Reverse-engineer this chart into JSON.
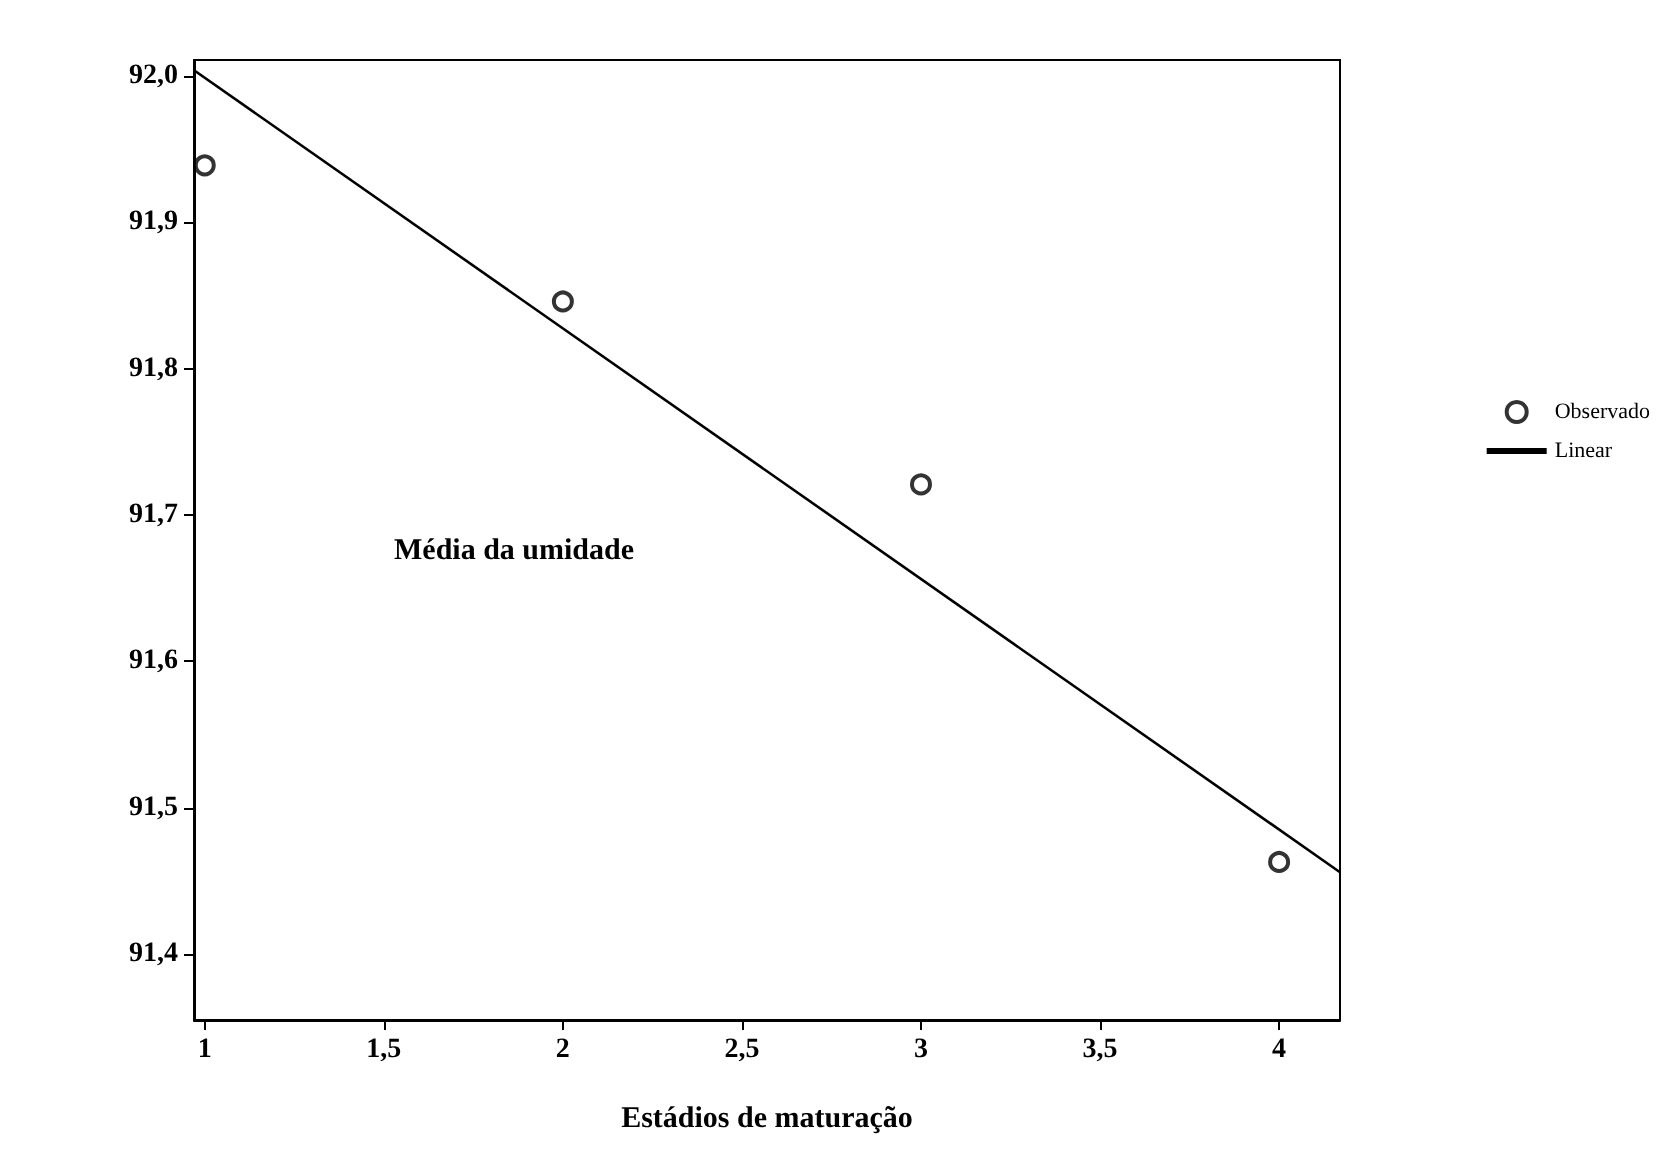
{
  "chart_data": {
    "type": "scatter",
    "xlabel": "Estádios de maturação",
    "annotations": [
      "Média da umidade"
    ],
    "xlim": [
      0.97,
      4.17
    ],
    "ylim": [
      91.355,
      92.011
    ],
    "xticks": [
      {
        "value": 1,
        "label": "1"
      },
      {
        "value": 1.5,
        "label": "1,5"
      },
      {
        "value": 2,
        "label": "2"
      },
      {
        "value": 2.5,
        "label": "2,5"
      },
      {
        "value": 3,
        "label": "3"
      },
      {
        "value": 3.5,
        "label": "3,5"
      },
      {
        "value": 4,
        "label": "4"
      }
    ],
    "yticks": [
      {
        "value": 91.4,
        "label": "91,4"
      },
      {
        "value": 91.5,
        "label": "91,5"
      },
      {
        "value": 91.6,
        "label": "91,6"
      },
      {
        "value": 91.7,
        "label": "91,7"
      },
      {
        "value": 91.8,
        "label": "91,8"
      },
      {
        "value": 91.9,
        "label": "91,9"
      },
      {
        "value": 92.0,
        "label": "92,0"
      }
    ],
    "series": [
      {
        "name": "Observado",
        "color": "#000000",
        "marker": "circle",
        "x": [
          1,
          2,
          3,
          4
        ],
        "values": [
          91.939,
          91.846,
          91.721,
          91.463
        ]
      },
      {
        "name": "Linear",
        "type": "line",
        "color": "#000000",
        "marker": "none",
        "x": [
          0.97,
          4.17
        ],
        "values": [
          92.004,
          91.456
        ]
      }
    ],
    "legend": "right",
    "grid": false
  }
}
